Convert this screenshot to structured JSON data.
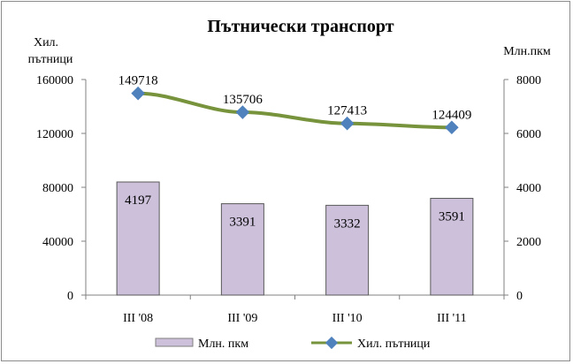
{
  "chart_data": {
    "type": "bar",
    "title": "Пътнически транспорт",
    "categories": [
      "III '08",
      "III '09",
      "III '10",
      "III '11"
    ],
    "series": [
      {
        "name": "Млн. пкм",
        "type": "bar",
        "axis": "right",
        "values": [
          4197,
          3391,
          3332,
          3591
        ],
        "data_labels": [
          "4197",
          "3391",
          "3332",
          "3591"
        ],
        "color": "#ccc0da"
      },
      {
        "name": "Хил. пътници",
        "type": "line",
        "axis": "left",
        "values": [
          149718,
          135706,
          127413,
          124409
        ],
        "data_labels": [
          "149718",
          "135706",
          "127413",
          "124409"
        ],
        "color": "#77933c",
        "marker_color": "#4f81bd"
      }
    ],
    "y_left": {
      "label_line1": "Хил.",
      "label_line2": "пътници",
      "range": [
        0,
        160000
      ],
      "ticks": [
        "0",
        "40000",
        "80000",
        "120000",
        "160000"
      ]
    },
    "y_right": {
      "label": "Млн.пкм",
      "range": [
        0,
        8000
      ],
      "ticks": [
        "0",
        "2000",
        "4000",
        "6000",
        "8000"
      ]
    },
    "legend": {
      "position": "bottom",
      "entries": [
        "Млн. пкм",
        "Хил. пътници"
      ]
    },
    "grid": false
  }
}
